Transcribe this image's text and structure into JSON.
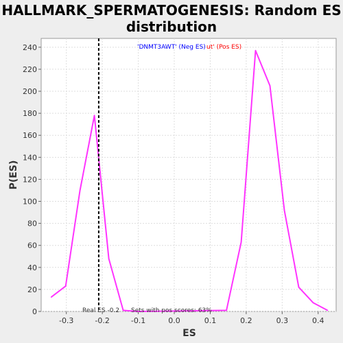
{
  "chart_data": {
    "type": "line",
    "title_line1": "HALLMARK_SPERMATOGENESIS: Random ES",
    "title_line2": "distribution",
    "xlabel": "ES",
    "ylabel": "P(ES)",
    "xlim": [
      -0.37,
      0.45
    ],
    "ylim": [
      0,
      248
    ],
    "xticks": [
      -0.3,
      -0.2,
      -0.1,
      0.0,
      0.1,
      0.2,
      0.3,
      0.4
    ],
    "xtick_labels": [
      "-0.3",
      "-0.2",
      "-0.1",
      "0.0",
      "0.1",
      "0.2",
      "0.3",
      "0.4"
    ],
    "yticks": [
      0,
      20,
      40,
      60,
      80,
      100,
      120,
      140,
      160,
      180,
      200,
      220,
      240
    ],
    "ytick_labels": [
      "0",
      "20",
      "40",
      "60",
      "80",
      "100",
      "120",
      "140",
      "160",
      "180",
      "200",
      "220",
      "240"
    ],
    "grid": true,
    "series": [
      {
        "color": "#ff33ff",
        "x": [
          -0.342,
          -0.302,
          -0.262,
          -0.222,
          -0.182,
          -0.142,
          -0.102,
          0.145,
          0.186,
          0.226,
          0.266,
          0.306,
          0.346,
          0.386,
          0.426
        ],
        "y": [
          13,
          23,
          110,
          178,
          48,
          1,
          0,
          1,
          63,
          237,
          205,
          92,
          22,
          8,
          1
        ]
      }
    ],
    "real_es": -0.21,
    "real_es_color": "#000000",
    "legend_neg": "'DNMT3AWT' (Neg ES)",
    "legend_neg_color": "#0000ff",
    "legend_pos": "ut' (Pos ES)",
    "legend_pos_color": "#ff0000",
    "annotation_real_es": "Real ES -0.2",
    "annotation_pos_scores": "Sets with pos scores: 63%"
  }
}
